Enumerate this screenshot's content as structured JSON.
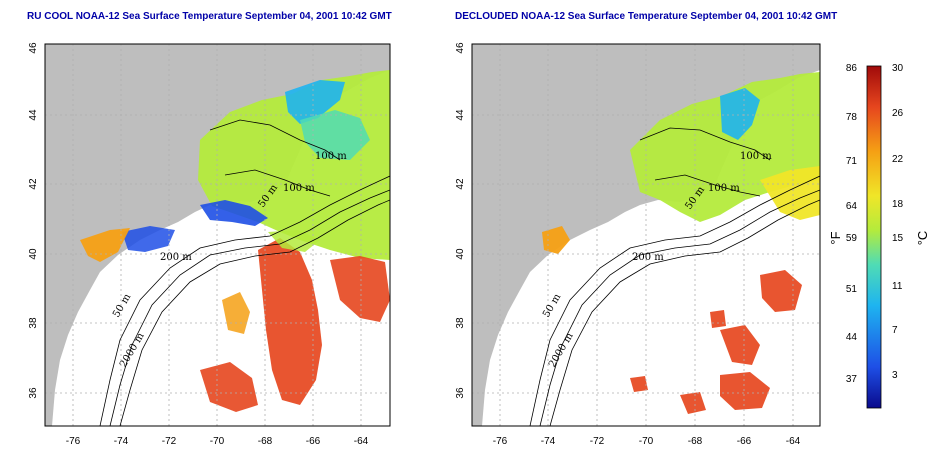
{
  "titles": {
    "left": "RU COOL NOAA-12 Sea Surface Temperature September 04, 2001 10:42 GMT",
    "right": "DECLOUDED NOAA-12 Sea Surface Temperature September 04, 2001 10:42 GMT"
  },
  "axes": {
    "lon_range": [
      -77.3,
      -63.0
    ],
    "lat_range": [
      35.0,
      46.0
    ],
    "lon_ticks": [
      "-76",
      "-74",
      "-72",
      "-70",
      "-68",
      "-66",
      "-64"
    ],
    "lat_ticks": [
      "36",
      "38",
      "40",
      "42",
      "44",
      "46"
    ],
    "grid": "dashed"
  },
  "contour_labels": {
    "left": [
      "100 m",
      "100 m",
      "50 m",
      "200 m",
      "50 m",
      "2000 m"
    ],
    "right": [
      "100 m",
      "100 m",
      "50 m",
      "200 m",
      "50 m",
      "2000 m"
    ]
  },
  "colorbar": {
    "fahrenheit_label": "°F",
    "celsius_label": "°C",
    "fahrenheit_ticks": [
      "86",
      "78",
      "71",
      "64",
      "59",
      "51",
      "44",
      "37"
    ],
    "celsius_ticks": [
      "30",
      "26",
      "22",
      "18",
      "15",
      "11",
      "7",
      "3"
    ],
    "fahrenheit_values": [
      86,
      78,
      71,
      64,
      59,
      51,
      44,
      37
    ],
    "celsius_values": [
      30,
      26,
      22,
      18,
      15,
      11,
      7,
      3
    ],
    "range_celsius": [
      0,
      30
    ]
  },
  "colors": {
    "land": "#bebebe",
    "ocean_no_data": "#ffffff",
    "title": "#0000a8",
    "gradient": [
      "#0a0a8c",
      "#1e4fe6",
      "#1eb4f0",
      "#50dcb4",
      "#b4eb3c",
      "#f0e628",
      "#f5a014",
      "#e6461e",
      "#a00a0a"
    ]
  }
}
